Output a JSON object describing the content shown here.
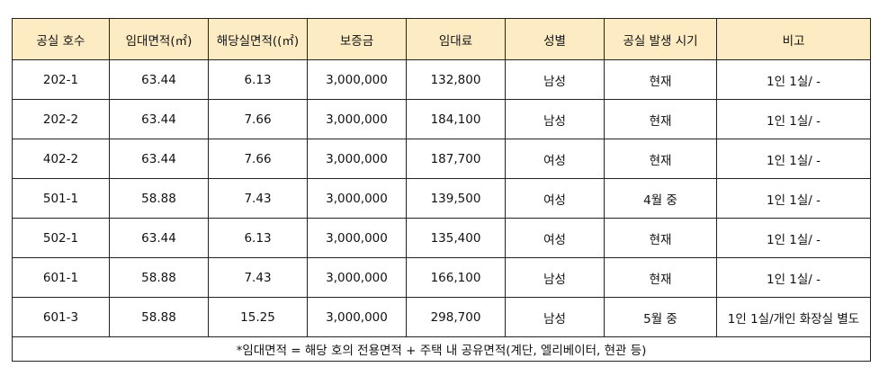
{
  "table": {
    "headers": [
      "공실 호수",
      "임대면적(㎡)",
      "해당실면적((㎡)",
      "보증금",
      "임대료",
      "성별",
      "공실 발생 시기",
      "비고"
    ],
    "rows": [
      [
        "202-1",
        "63.44",
        "6.13",
        "3,000,000",
        "132,800",
        "남성",
        "현재",
        "1인 1실/ -"
      ],
      [
        "202-2",
        "63.44",
        "7.66",
        "3,000,000",
        "184,100",
        "남성",
        "현재",
        "1인 1실/ -"
      ],
      [
        "402-2",
        "63.44",
        "7.66",
        "3,000,000",
        "187,700",
        "여성",
        "현재",
        "1인 1실/ -"
      ],
      [
        "501-1",
        "58.88",
        "7.43",
        "3,000,000",
        "139,500",
        "여성",
        "4월 중",
        "1인 1실/ -"
      ],
      [
        "502-1",
        "63.44",
        "6.13",
        "3,000,000",
        "135,400",
        "여성",
        "현재",
        "1인 1실/ -"
      ],
      [
        "601-1",
        "58.88",
        "7.43",
        "3,000,000",
        "166,100",
        "남성",
        "현재",
        "1인 1실/ -"
      ],
      [
        "601-3",
        "58.88",
        "15.25",
        "3,000,000",
        "298,700",
        "남성",
        "5월 중",
        "1인 1실/개인 화장실 별도"
      ]
    ],
    "footnote": "*임대면적 = 해당 호의 전용면적 + 주택 내 공유면적(계단, 엘리베이터, 현관 등)"
  }
}
